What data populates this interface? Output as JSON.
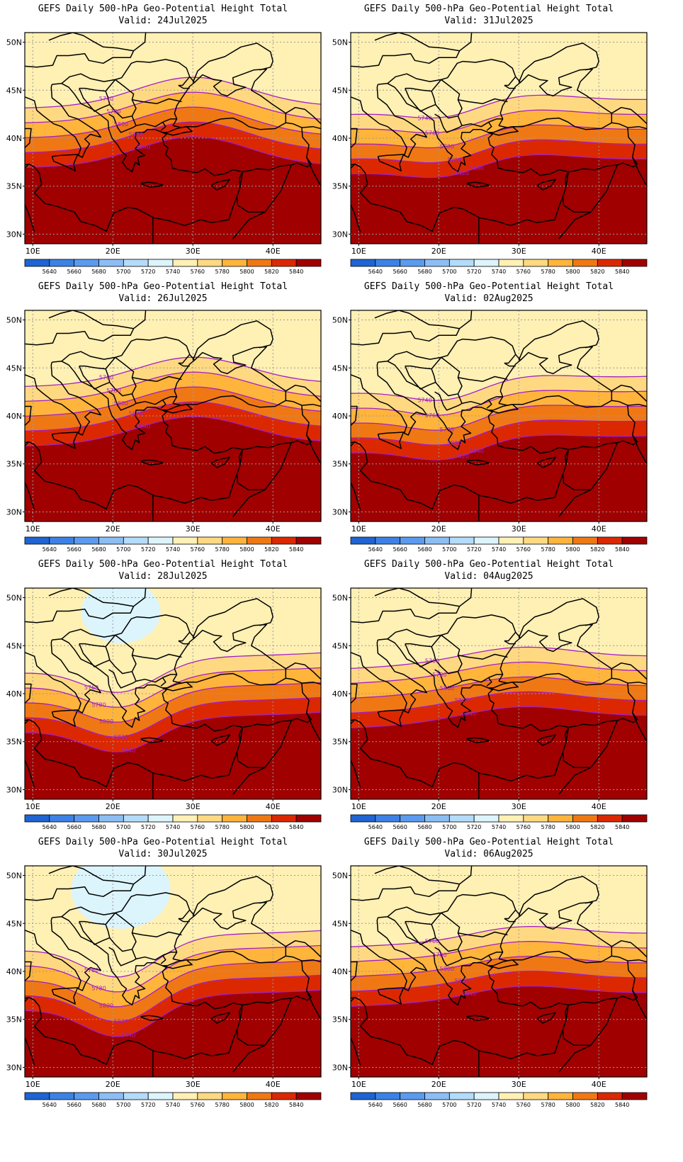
{
  "figure": {
    "panels": [
      {
        "title": "GEFS Daily 500-hPa Geo-Potential Height Total",
        "valid": "Valid: 24Jul2025",
        "contour_labels": [
          "5740",
          "5780",
          "5800",
          "5820",
          "5840"
        ],
        "ridge": 0.92,
        "trough": 0.0
      },
      {
        "title": "GEFS Daily 500-hPa Geo-Potential Height Total",
        "valid": "Valid: 31Jul2025",
        "contour_labels": [
          "5740",
          "5760",
          "5780",
          "5800",
          "5820",
          "5840"
        ],
        "ridge": 0.35,
        "trough": 0.35
      },
      {
        "title": "GEFS Daily 500-hPa Geo-Potential Height Total",
        "valid": "Valid: 26Jul2025",
        "contour_labels": [
          "5760",
          "5780",
          "5800",
          "5820",
          "5840"
        ],
        "ridge": 0.85,
        "trough": 0.0
      },
      {
        "title": "GEFS Daily 500-hPa Geo-Potential Height Total",
        "valid": "Valid: 02Aug2025",
        "contour_labels": [
          "5740",
          "5760",
          "5780",
          "5800",
          "5820",
          "5840"
        ],
        "ridge": 0.25,
        "trough": 0.45
      },
      {
        "title": "GEFS Daily 500-hPa Geo-Potential Height Total",
        "valid": "Valid: 28Jul2025",
        "contour_labels": [
          "5760",
          "5780",
          "5800",
          "5820",
          "5840"
        ],
        "ridge": 0.1,
        "trough": 0.8
      },
      {
        "title": "GEFS Daily 500-hPa Geo-Potential Height Total",
        "valid": "Valid: 04Aug2025",
        "contour_labels": [
          "5760",
          "5780",
          "5800",
          "5820",
          "5840"
        ],
        "ridge": 0.45,
        "trough": 0.0
      },
      {
        "title": "GEFS Daily 500-hPa Geo-Potential Height Total",
        "valid": "Valid: 30Jul2025",
        "contour_labels": [
          "5760",
          "5780",
          "5800",
          "5820",
          "5840"
        ],
        "ridge": 0.1,
        "trough": 1.0
      },
      {
        "title": "GEFS Daily 500-hPa Geo-Potential Height Total",
        "valid": "Valid: 06Aug2025",
        "contour_labels": [
          "5760",
          "5780",
          "5800",
          "5820",
          "5840"
        ],
        "ridge": 0.4,
        "trough": 0.05
      }
    ],
    "lat_labels": [
      "50N",
      "45N",
      "40N",
      "35N",
      "30N"
    ],
    "lon_labels": [
      "10E",
      "20E",
      "30E",
      "40E"
    ],
    "lat_values": [
      50,
      45,
      40,
      35,
      30
    ],
    "lon_values": [
      10,
      20,
      30,
      40
    ],
    "lon_range": [
      9,
      46
    ],
    "lat_range": [
      29,
      51
    ],
    "colorbar": {
      "labels": [
        "5640",
        "5660",
        "5680",
        "5700",
        "5720",
        "5740",
        "5760",
        "5780",
        "5800",
        "5820",
        "5840"
      ],
      "colors": [
        "#1e64d2",
        "#3c82e6",
        "#5a9bf0",
        "#8cbef5",
        "#b4dcfa",
        "#dcf4fc",
        "#fff0b4",
        "#ffd982",
        "#ffb43c",
        "#f07814",
        "#dc2800",
        "#a00000"
      ]
    },
    "contour_color": "#a020c8"
  }
}
